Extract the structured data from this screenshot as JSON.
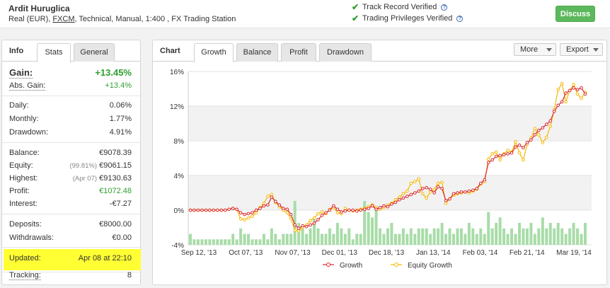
{
  "header": {
    "name": "Ardit Huruglica",
    "desc_pre": "Real (EUR), ",
    "broker": "FXCM",
    "desc_post": ", Technical, Manual, 1:400 , FX Trading Station",
    "verified_1": "Track Record Verified",
    "verified_2": "Trading Privileges Verified",
    "discuss": "Discuss"
  },
  "left": {
    "title": "Info",
    "tabs": [
      "Stats",
      "General"
    ],
    "gain_label": "Gain:",
    "gain_value": "+13.45%",
    "abs_gain_label": "Abs. Gain:",
    "abs_gain_value": "+13.4%",
    "daily_label": "Daily:",
    "daily_value": "0.06%",
    "monthly_label": "Monthly:",
    "monthly_value": "1.77%",
    "drawdown_label": "Drawdown:",
    "drawdown_value": "4.91%",
    "balance_label": "Balance:",
    "balance_value": "€9078.39",
    "equity_label": "Equity:",
    "equity_note": "(99.81%)",
    "equity_value": "€9061.15",
    "highest_label": "Highest:",
    "highest_note": "(Apr 07)",
    "highest_value": "€9130.63",
    "profit_label": "Profit:",
    "profit_value": "€1072.48",
    "interest_label": "Interest:",
    "interest_value": "-€7.27",
    "deposits_label": "Deposits:",
    "deposits_value": "€8000.00",
    "withdrawals_label": "Withdrawals:",
    "withdrawals_value": "€0.00",
    "updated_label": "Updated:",
    "updated_value": "Apr 08 at 22:10",
    "tracking_label": "Tracking:",
    "tracking_value": "8"
  },
  "chart_panel": {
    "title": "Chart",
    "tabs": [
      "Growth",
      "Balance",
      "Profit",
      "Drawdown"
    ],
    "more": "More",
    "export": "Export"
  },
  "colors": {
    "growth": "#d9262b",
    "equity": "#f5b800",
    "bars": "#a8dca8",
    "highlight": "#ffff33",
    "green": "#5cb85c"
  },
  "chart_data": {
    "type": "line",
    "x_tick_labels": [
      "Sep 12, '13",
      "Oct 07, '13",
      "Nov 07, '13",
      "Dec 01, '13",
      "Dec 18, '13",
      "Jan 13, '14",
      "Feb 03, '14",
      "Feb 21, '14",
      "Mar 19, '14"
    ],
    "y_tick_labels": [
      "16%",
      "12%",
      "8%",
      "4%",
      "0%",
      "-4%"
    ],
    "ylim": [
      -4,
      16
    ],
    "legend": "bottom",
    "series": [
      {
        "name": "Growth",
        "values": [
          0,
          0,
          0,
          0,
          0,
          0,
          0,
          0,
          0,
          0,
          0.1,
          0.2,
          0.1,
          -0.3,
          -0.5,
          -0.4,
          -0.3,
          0,
          0.2,
          0.5,
          0.6,
          1.5,
          1.0,
          0.6,
          0.2,
          0.1,
          -0.5,
          -1.7,
          -2.1,
          -1.8,
          -1.9,
          -1.7,
          -1.5,
          -1.1,
          -0.6,
          -0.3,
          0,
          0.5,
          0.1,
          -0.2,
          -0.1,
          0,
          0,
          -0.1,
          0,
          0.1,
          0.2,
          0.5,
          0.1,
          0.3,
          0.5,
          0.4,
          0.7,
          0.9,
          1.2,
          1.4,
          1.6,
          1.8,
          2.0,
          2.2,
          2.5,
          2.6,
          2.4,
          2.0,
          2.7,
          2.5,
          1.1,
          1.3,
          1.9,
          2.0,
          2.1,
          2.1,
          2.2,
          2.3,
          2.5,
          3.1,
          3.5,
          5.5,
          5.8,
          6.2,
          6.3,
          6.4,
          6.5,
          6.6,
          7.3,
          7.5,
          7.2,
          7.8,
          8.1,
          8.7,
          9.2,
          9.5,
          9.9,
          10.3,
          11.4,
          12.1,
          12.5,
          13.5,
          13.8,
          14.1,
          13.9,
          14.1,
          13.4
        ]
      },
      {
        "name": "Equity Growth",
        "values": [
          0,
          0,
          0,
          0,
          0,
          0,
          0,
          0,
          0,
          0,
          0.1,
          0.2,
          0.1,
          -1.0,
          -1.1,
          -0.9,
          -0.7,
          -0.3,
          0.3,
          0.8,
          1.6,
          1.8,
          0.9,
          0.4,
          0.0,
          -0.3,
          -1.0,
          -2.3,
          -2.4,
          -2.0,
          -1.7,
          -1.2,
          -0.9,
          -0.4,
          -0.2,
          -0.4,
          0.1,
          0.3,
          -0.3,
          -0.4,
          0.2,
          0.0,
          -0.1,
          0.0,
          0.1,
          0.2,
          0.4,
          0.6,
          0.3,
          0.1,
          0.3,
          0.6,
          0.8,
          1.2,
          1.5,
          1.9,
          2.2,
          3.1,
          3.3,
          3.6,
          1.9,
          1.4,
          2.1,
          2.4,
          3.1,
          3.2,
          0.8,
          1.3,
          1.7,
          1.9,
          2.0,
          2.1,
          2.0,
          2.2,
          2.4,
          3.0,
          3.3,
          5.9,
          6.5,
          6.7,
          5.8,
          6.5,
          6.9,
          6.7,
          7.9,
          6.6,
          5.8,
          7.6,
          8.3,
          9.4,
          8.7,
          7.8,
          8.4,
          9.7,
          11.6,
          13.9,
          14.6,
          12.5,
          13.8,
          14.5,
          13.4,
          12.9,
          13.6
        ]
      }
    ],
    "volume": [
      2,
      1,
      1,
      1,
      1,
      1,
      1,
      1,
      1,
      1,
      1,
      2,
      1,
      3,
      2,
      2,
      1,
      1,
      1,
      2,
      1,
      3,
      2,
      1,
      2,
      2,
      2,
      8,
      4,
      3,
      2,
      3,
      5,
      3,
      2,
      2,
      3,
      2,
      4,
      3,
      2,
      3,
      1,
      2,
      2,
      8,
      6,
      5,
      7,
      3,
      2,
      3,
      4,
      2,
      2,
      3,
      2,
      3,
      2,
      3,
      3,
      3,
      2,
      3,
      3,
      4,
      2,
      3,
      2,
      3,
      3,
      2,
      4,
      3,
      2,
      3,
      2,
      6,
      3,
      4,
      5,
      3,
      2,
      3,
      2,
      4,
      3,
      3,
      4,
      2,
      3,
      5,
      3,
      4,
      3,
      4,
      3,
      2,
      3,
      4,
      3,
      2,
      4
    ]
  }
}
